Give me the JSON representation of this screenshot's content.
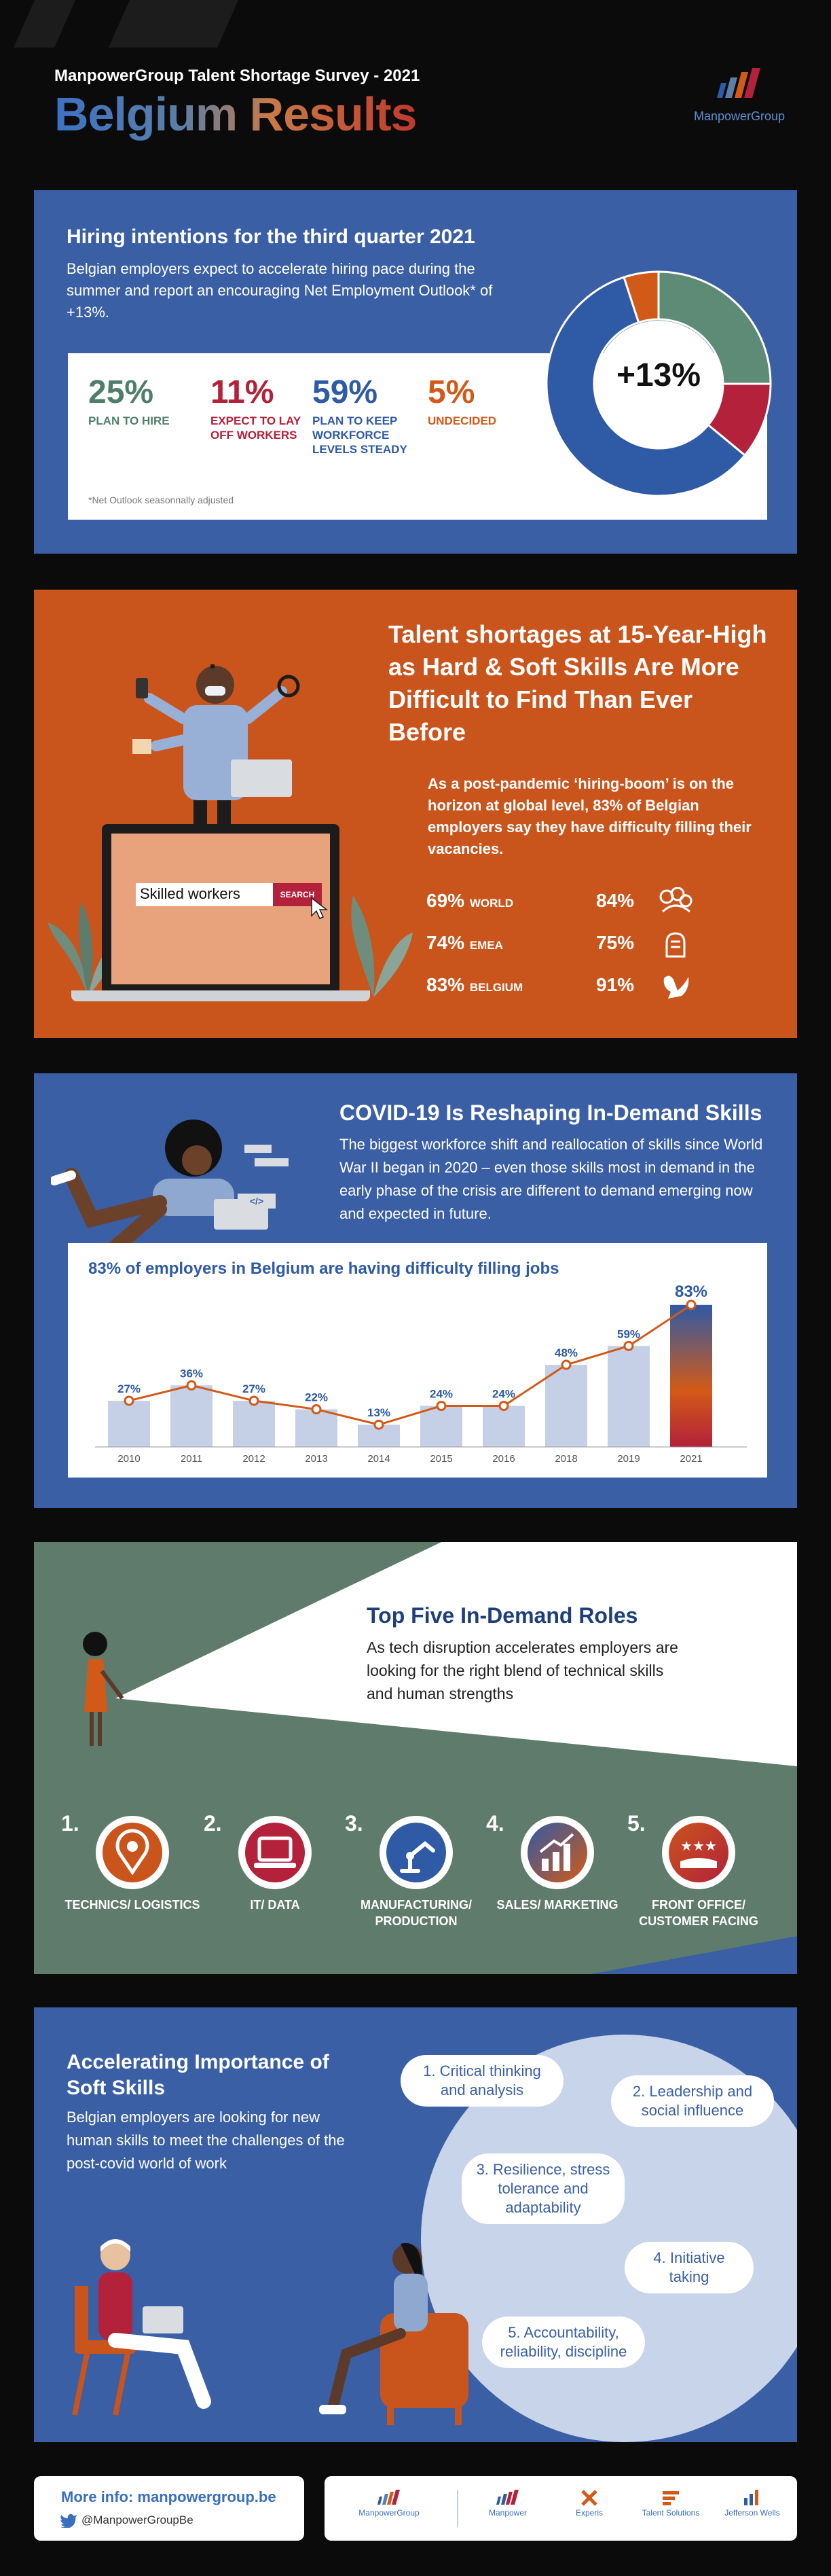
{
  "header": {
    "subtitle": "ManpowerGroup Talent Shortage Survey  - 2021",
    "title": "Belgium Results",
    "logo_name": "ManpowerGroup"
  },
  "hiring": {
    "title": "Hiring intentions for the third quarter 2021",
    "description": "Belgian employers expect to accelerate hiring pace during the summer and report an encouraging Net Employment Outlook* of +13%.",
    "stats": [
      {
        "value": "25%",
        "label": "PLAN TO HIRE",
        "color": "#4f7e6b"
      },
      {
        "value": "11%",
        "label": "EXPECT TO LAY OFF WORKERS",
        "color": "#b3213a"
      },
      {
        "value": "59%",
        "label": "PLAN TO KEEP WORKFORCE LEVELS STEADY",
        "color": "#2f5aa5"
      },
      {
        "value": "5%",
        "label": "UNDECIDED",
        "color": "#d25a18"
      }
    ],
    "note": "*Net Outlook seasonnally adjusted",
    "outlook": "+13%",
    "donut": [
      {
        "pct": 25,
        "color": "#5e8b75"
      },
      {
        "pct": 11,
        "color": "#b3213a"
      },
      {
        "pct": 59,
        "color": "#2f5aa5"
      },
      {
        "pct": 5,
        "color": "#d25a18"
      }
    ]
  },
  "shortage": {
    "title": "Talent shortages at 15-Year-High as Hard & Soft Skills Are More Difficult to Find Than Ever Before",
    "description": "As a post-pandemic ‘hiring-boom’ is on the horizon at global level, 83% of Belgian employers say they have difficulty filling their vacancies.",
    "search_text": "Skilled workers",
    "search_button": "SEARCH",
    "rows": [
      {
        "value": "69%",
        "region": "WORLD",
        "value2": "84%",
        "icon": "flowers-icon"
      },
      {
        "value": "74%",
        "region": "EMEA",
        "value2": "75%",
        "icon": "lion-icon"
      },
      {
        "value": "83%",
        "region": "BELGIUM",
        "value2": "91%",
        "icon": "rooster-icon"
      }
    ]
  },
  "covid": {
    "title": "COVID-19 Is Reshaping In-Demand Skills",
    "description": "The biggest workforce shift and reallocation of skills since World War II began in 2020 – even those skills most in demand in the early phase of the crisis are different to demand emerging now and expected in future.",
    "code_tag": "</>"
  },
  "chart_data": {
    "type": "bar",
    "title": "83% of employers in Belgium are having difficulty filling jobs",
    "categories": [
      "2010",
      "2011",
      "2012",
      "2013",
      "2014",
      "2015",
      "2016",
      "2018",
      "2019",
      "2021"
    ],
    "values": [
      27,
      36,
      27,
      22,
      13,
      24,
      24,
      48,
      59,
      83
    ],
    "labels": [
      "27%",
      "36%",
      "27%",
      "22%",
      "13%",
      "24%",
      "24%",
      "48%",
      "59%",
      "83%"
    ],
    "ylim": [
      0,
      100
    ],
    "bar_color": "#c5d0e6",
    "line_color": "#d25a18",
    "highlight_gradient": [
      "#2f5aa5",
      "#d25a18",
      "#b3213a"
    ]
  },
  "roles": {
    "title": "Top Five In-Demand Roles",
    "description": "As tech disruption accelerates employers are looking for the right blend of technical skills and human strengths",
    "items": [
      {
        "num": "1.",
        "label": "TECHNICS/ LOGISTICS",
        "icon": "location-pin-icon"
      },
      {
        "num": "2.",
        "label": "IT/ DATA",
        "icon": "laptop-icon"
      },
      {
        "num": "3.",
        "label": "MANUFACTURING/ PRODUCTION",
        "icon": "robot-arm-icon"
      },
      {
        "num": "4.",
        "label": "SALES/ MARKETING",
        "icon": "growth-chart-icon"
      },
      {
        "num": "5.",
        "label": "FRONT OFFICE/ CUSTOMER FACING",
        "icon": "rating-stars-icon"
      }
    ]
  },
  "soft_skills": {
    "title": "Accelerating Importance of Soft Skills",
    "description": "Belgian employers are looking for new human skills to meet the challenges of the post-covid world of work",
    "items": [
      "1. Critical thinking and analysis",
      "2. Leadership and social influence",
      "3. Resilience, stress tolerance and adaptability",
      "4. Initiative taking",
      "5. Accountability, reliability, discipline"
    ]
  },
  "footer": {
    "more_info": "More info: manpowergroup.be",
    "twitter": "@ManpowerGroupBe",
    "brands": [
      "ManpowerGroup",
      "Manpower",
      "Experis",
      "Talent Solutions",
      "Jefferson Wells"
    ]
  }
}
